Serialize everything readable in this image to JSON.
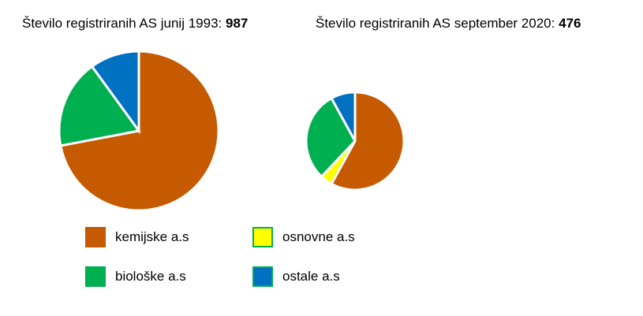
{
  "chart_data": [
    {
      "type": "pie",
      "title_text": "Število registriranih AS junij 1993: ",
      "title_value": "987",
      "total": 987,
      "slices": [
        {
          "label": "kemijske a.s",
          "share": 0.72,
          "color": "#C55A00"
        },
        {
          "label": "osnovne a.s",
          "share": 0.0,
          "color": "#FFFF00"
        },
        {
          "label": "biološke a.s",
          "share": 0.18,
          "color": "#00B050"
        },
        {
          "label": "ostale a.s",
          "share": 0.1,
          "color": "#0070C0"
        }
      ]
    },
    {
      "type": "pie",
      "title_text": "Število registriranih AS september 2020: ",
      "title_value": "476",
      "total": 476,
      "slices": [
        {
          "label": "kemijske a.s",
          "share": 0.58,
          "color": "#C55A00"
        },
        {
          "label": "osnovne a.s",
          "share": 0.04,
          "color": "#FFFF00"
        },
        {
          "label": "biološke a.s",
          "share": 0.3,
          "color": "#00B050"
        },
        {
          "label": "ostale a.s",
          "share": 0.08,
          "color": "#0070C0"
        }
      ]
    }
  ],
  "legend": [
    {
      "label": "kemijske a.s",
      "color": "#C55A00",
      "border": "#C55A00"
    },
    {
      "label": "osnovne a.s",
      "color": "#FFFF00",
      "border": "#00B050"
    },
    {
      "label": "biološke a.s",
      "color": "#00B050",
      "border": "#00B050"
    },
    {
      "label": "ostale a.s",
      "color": "#0070C0",
      "border": "#00B050"
    }
  ]
}
